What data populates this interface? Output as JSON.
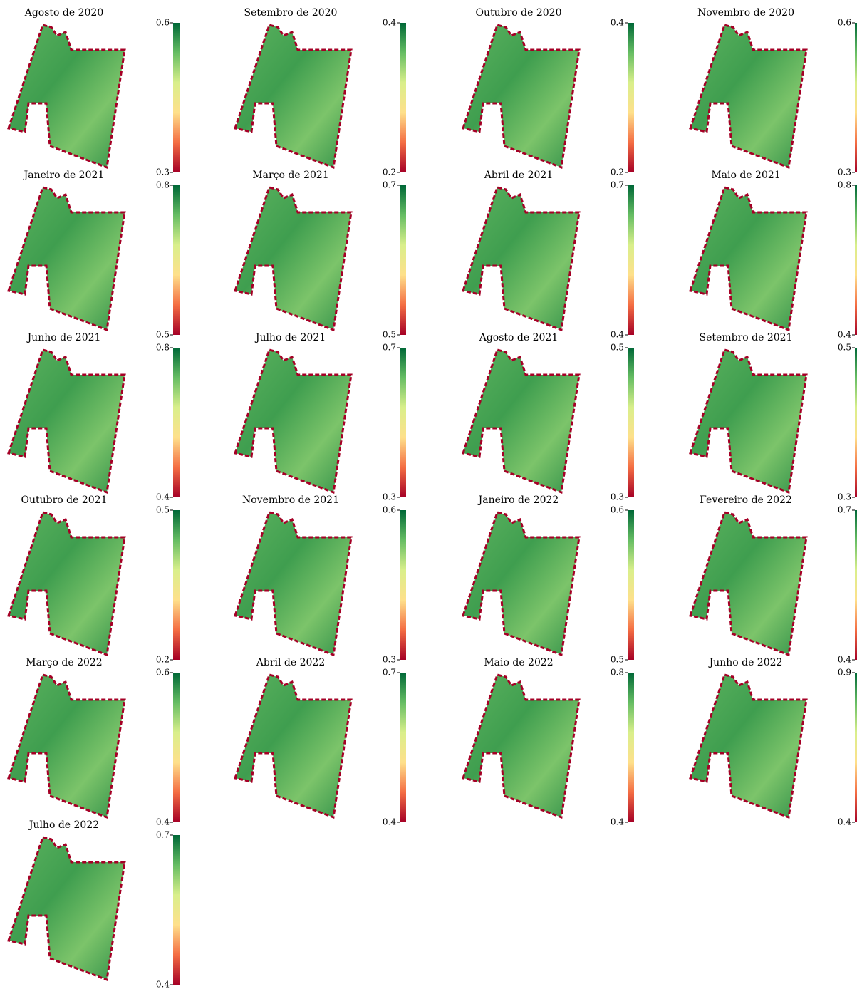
{
  "chart_data": [
    {
      "type": "heatmap",
      "title": "Agosto de 2020",
      "clim": [
        0.3,
        0.6
      ],
      "cticks": [
        0.3,
        0.6
      ],
      "colormap": [
        "#a50026",
        "#f46d43",
        "#fee08b",
        "#d9ef8b",
        "#66bd63",
        "#006837"
      ]
    },
    {
      "type": "heatmap",
      "title": "Setembro de 2020",
      "clim": [
        0.2,
        0.4
      ],
      "cticks": [
        0.2,
        0.4
      ],
      "colormap": [
        "#a50026",
        "#f46d43",
        "#fee08b",
        "#d9ef8b",
        "#66bd63",
        "#006837"
      ]
    },
    {
      "type": "heatmap",
      "title": "Outubro de 2020",
      "clim": [
        0.2,
        0.4
      ],
      "cticks": [
        0.2,
        0.4
      ],
      "colormap": [
        "#a50026",
        "#f46d43",
        "#fee08b",
        "#d9ef8b",
        "#66bd63",
        "#006837"
      ]
    },
    {
      "type": "heatmap",
      "title": "Novembro de 2020",
      "clim": [
        0.3,
        0.6
      ],
      "cticks": [
        0.3,
        0.6
      ],
      "colormap": [
        "#a50026",
        "#f46d43",
        "#fee08b",
        "#d9ef8b",
        "#66bd63",
        "#006837"
      ]
    },
    {
      "type": "heatmap",
      "title": "Janeiro de 2021",
      "clim": [
        0.5,
        0.8
      ],
      "cticks": [
        0.5,
        0.8
      ],
      "colormap": [
        "#a50026",
        "#f46d43",
        "#fee08b",
        "#d9ef8b",
        "#66bd63",
        "#006837"
      ]
    },
    {
      "type": "heatmap",
      "title": "Março de 2021",
      "clim": [
        0.5,
        0.7
      ],
      "cticks": [
        0.5,
        0.7
      ],
      "colormap": [
        "#a50026",
        "#f46d43",
        "#fee08b",
        "#d9ef8b",
        "#66bd63",
        "#006837"
      ]
    },
    {
      "type": "heatmap",
      "title": "Abril de 2021",
      "clim": [
        0.4,
        0.7
      ],
      "cticks": [
        0.4,
        0.7
      ],
      "colormap": [
        "#a50026",
        "#f46d43",
        "#fee08b",
        "#d9ef8b",
        "#66bd63",
        "#006837"
      ]
    },
    {
      "type": "heatmap",
      "title": "Maio de 2021",
      "clim": [
        0.4,
        0.8
      ],
      "cticks": [
        0.4,
        0.8
      ],
      "colormap": [
        "#a50026",
        "#f46d43",
        "#fee08b",
        "#d9ef8b",
        "#66bd63",
        "#006837"
      ]
    },
    {
      "type": "heatmap",
      "title": "Junho de 2021",
      "clim": [
        0.4,
        0.8
      ],
      "cticks": [
        0.4,
        0.8
      ],
      "colormap": [
        "#a50026",
        "#f46d43",
        "#fee08b",
        "#d9ef8b",
        "#66bd63",
        "#006837"
      ]
    },
    {
      "type": "heatmap",
      "title": "Julho de 2021",
      "clim": [
        0.3,
        0.7
      ],
      "cticks": [
        0.3,
        0.7
      ],
      "colormap": [
        "#a50026",
        "#f46d43",
        "#fee08b",
        "#d9ef8b",
        "#66bd63",
        "#006837"
      ]
    },
    {
      "type": "heatmap",
      "title": "Agosto de 2021",
      "clim": [
        0.3,
        0.5
      ],
      "cticks": [
        0.3,
        0.5
      ],
      "colormap": [
        "#a50026",
        "#f46d43",
        "#fee08b",
        "#d9ef8b",
        "#66bd63",
        "#006837"
      ]
    },
    {
      "type": "heatmap",
      "title": "Setembro de 2021",
      "clim": [
        0.3,
        0.5
      ],
      "cticks": [
        0.3,
        0.5
      ],
      "colormap": [
        "#a50026",
        "#f46d43",
        "#fee08b",
        "#d9ef8b",
        "#66bd63",
        "#006837"
      ]
    },
    {
      "type": "heatmap",
      "title": "Outubro de 2021",
      "clim": [
        0.2,
        0.5
      ],
      "cticks": [
        0.2,
        0.5
      ],
      "colormap": [
        "#a50026",
        "#f46d43",
        "#fee08b",
        "#d9ef8b",
        "#66bd63",
        "#006837"
      ]
    },
    {
      "type": "heatmap",
      "title": "Novembro de 2021",
      "clim": [
        0.3,
        0.6
      ],
      "cticks": [
        0.3,
        0.6
      ],
      "colormap": [
        "#a50026",
        "#f46d43",
        "#fee08b",
        "#d9ef8b",
        "#66bd63",
        "#006837"
      ]
    },
    {
      "type": "heatmap",
      "title": "Janeiro de 2022",
      "clim": [
        0.5,
        0.6
      ],
      "cticks": [
        0.5,
        0.6
      ],
      "colormap": [
        "#a50026",
        "#f46d43",
        "#fee08b",
        "#d9ef8b",
        "#66bd63",
        "#006837"
      ]
    },
    {
      "type": "heatmap",
      "title": "Fevereiro de 2022",
      "clim": [
        0.4,
        0.7
      ],
      "cticks": [
        0.4,
        0.7
      ],
      "colormap": [
        "#a50026",
        "#f46d43",
        "#fee08b",
        "#d9ef8b",
        "#66bd63",
        "#006837"
      ]
    },
    {
      "type": "heatmap",
      "title": "Março de 2022",
      "clim": [
        0.4,
        0.6
      ],
      "cticks": [
        0.4,
        0.6
      ],
      "colormap": [
        "#a50026",
        "#f46d43",
        "#fee08b",
        "#d9ef8b",
        "#66bd63",
        "#006837"
      ]
    },
    {
      "type": "heatmap",
      "title": "Abril de 2022",
      "clim": [
        0.4,
        0.7
      ],
      "cticks": [
        0.4,
        0.7
      ],
      "colormap": [
        "#a50026",
        "#f46d43",
        "#fee08b",
        "#d9ef8b",
        "#66bd63",
        "#006837"
      ]
    },
    {
      "type": "heatmap",
      "title": "Maio de 2022",
      "clim": [
        0.4,
        0.8
      ],
      "cticks": [
        0.4,
        0.8
      ],
      "colormap": [
        "#a50026",
        "#f46d43",
        "#fee08b",
        "#d9ef8b",
        "#66bd63",
        "#006837"
      ]
    },
    {
      "type": "heatmap",
      "title": "Junho de 2022",
      "clim": [
        0.4,
        0.9
      ],
      "cticks": [
        0.4,
        0.9
      ],
      "colormap": [
        "#a50026",
        "#f46d43",
        "#fee08b",
        "#d9ef8b",
        "#66bd63",
        "#006837"
      ]
    },
    {
      "type": "heatmap",
      "title": "Julho de 2022",
      "clim": [
        0.4,
        0.7
      ],
      "cticks": [
        0.4,
        0.7
      ],
      "colormap": [
        "#a50026",
        "#f46d43",
        "#fee08b",
        "#d9ef8b",
        "#66bd63",
        "#006837"
      ]
    }
  ]
}
